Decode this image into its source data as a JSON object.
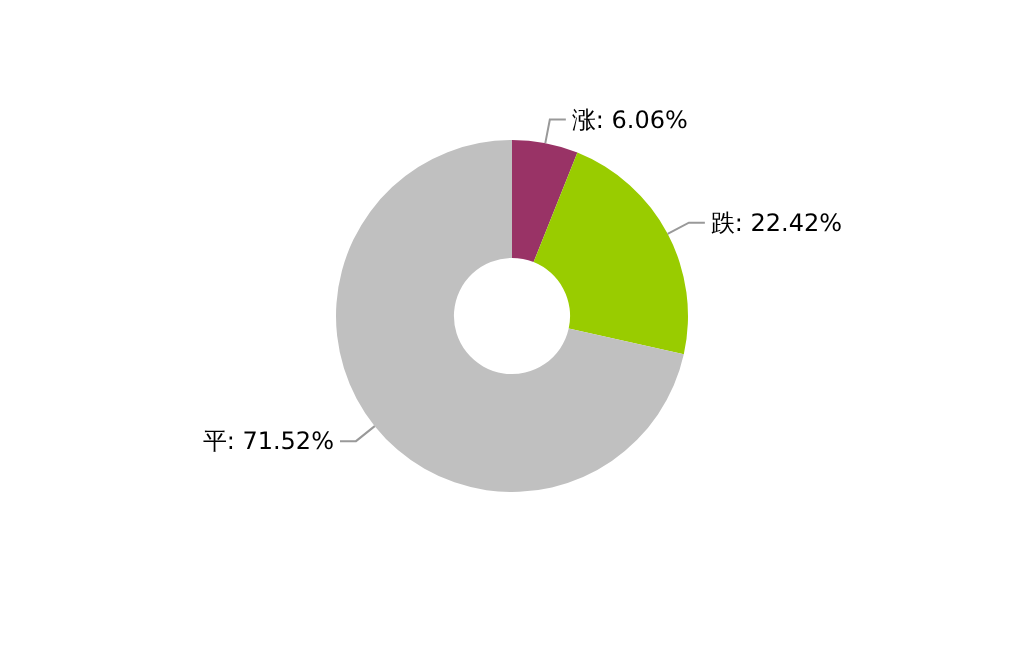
{
  "chart_data": {
    "type": "donut",
    "categories": [
      "涨",
      "跌",
      "平"
    ],
    "values": [
      6.06,
      22.42,
      71.52
    ],
    "colors": [
      "#993366",
      "#99cc00",
      "#c0c0c0"
    ],
    "value_labels": [
      "6.06%",
      "22.42%",
      "71.52%"
    ]
  }
}
